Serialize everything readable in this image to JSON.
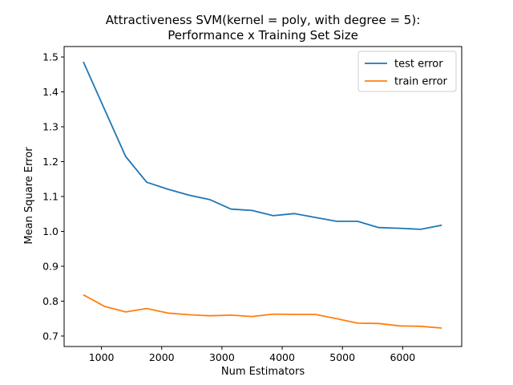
{
  "chart_data": {
    "type": "line",
    "title": "Attractiveness SVM(kernel = poly, with degree = 5):\nPerformance x Training Set Size",
    "xlabel": "Num Estimators",
    "ylabel": "Mean Square Error",
    "xlim": [
      380,
      6980
    ],
    "ylim": [
      0.67,
      1.53
    ],
    "xticks": [
      1000,
      2000,
      3000,
      4000,
      5000,
      6000
    ],
    "yticks": [
      0.7,
      0.8,
      0.9,
      1.0,
      1.1,
      1.2,
      1.3,
      1.4,
      1.5
    ],
    "ytick_labels": [
      "0.7",
      "0.8",
      "0.9",
      "1.0",
      "1.1",
      "1.2",
      "1.3",
      "1.4",
      "1.5"
    ],
    "grid": false,
    "legend_position": "top-right",
    "x": [
      700,
      1050,
      1400,
      1750,
      2100,
      2450,
      2800,
      3150,
      3500,
      3850,
      4200,
      4550,
      4900,
      5250,
      5600,
      5950,
      6300,
      6650
    ],
    "series": [
      {
        "name": "test error",
        "color": "#1f77b4",
        "values": [
          1.486,
          1.35,
          1.215,
          1.141,
          1.121,
          1.104,
          1.091,
          1.064,
          1.06,
          1.045,
          1.051,
          1.04,
          1.029,
          1.029,
          1.011,
          1.009,
          1.006,
          1.018
        ]
      },
      {
        "name": "train error",
        "color": "#ff7f0e",
        "values": [
          0.818,
          0.785,
          0.769,
          0.779,
          0.766,
          0.761,
          0.758,
          0.76,
          0.756,
          0.763,
          0.762,
          0.762,
          0.75,
          0.737,
          0.736,
          0.729,
          0.728,
          0.723
        ]
      }
    ]
  }
}
